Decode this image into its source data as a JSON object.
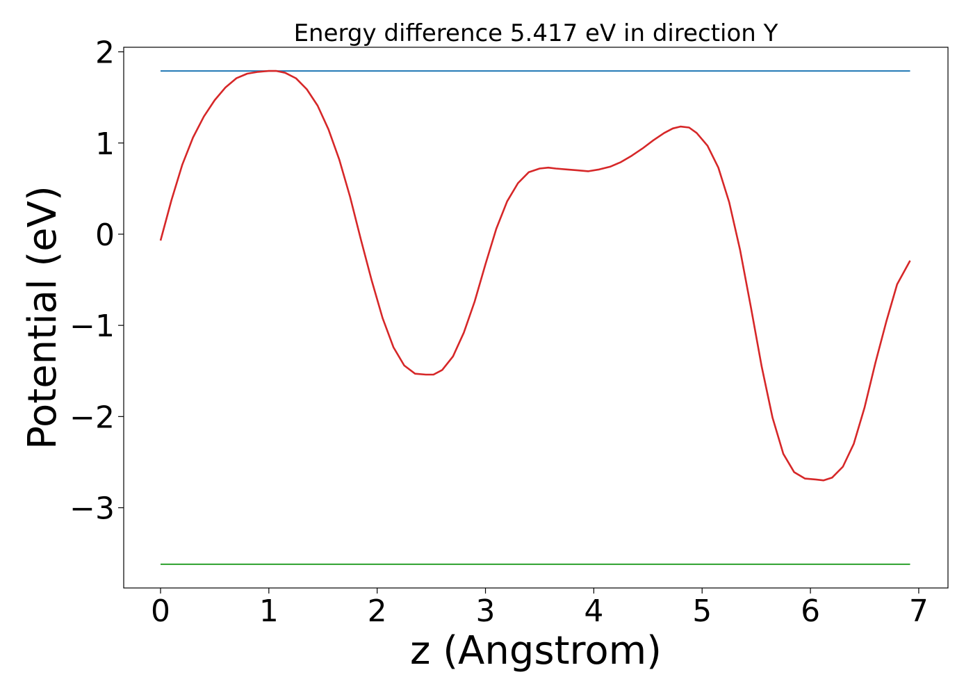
{
  "chart_data": {
    "type": "line",
    "title": "Energy difference 5.417 eV in direction Y",
    "xlabel": "z (Angstrom)",
    "ylabel": "Potential (eV)",
    "xlim": [
      -0.34,
      7.27
    ],
    "ylim": [
      -3.88,
      2.05
    ],
    "xticks": [
      0,
      1,
      2,
      3,
      4,
      5,
      6,
      7
    ],
    "xtick_labels": [
      "0",
      "1",
      "2",
      "3",
      "4",
      "5",
      "6",
      "7"
    ],
    "yticks": [
      -3,
      -2,
      -1,
      0,
      1,
      2
    ],
    "ytick_labels": [
      "−3",
      "−2",
      "−1",
      "0",
      "1",
      "2"
    ],
    "grid": false,
    "series": [
      {
        "color": "#d62728",
        "x": [
          0.0,
          0.1,
          0.2,
          0.3,
          0.4,
          0.5,
          0.6,
          0.7,
          0.8,
          0.9,
          1.0,
          1.07,
          1.15,
          1.25,
          1.35,
          1.45,
          1.55,
          1.65,
          1.75,
          1.85,
          1.95,
          2.05,
          2.15,
          2.25,
          2.35,
          2.45,
          2.52,
          2.6,
          2.7,
          2.8,
          2.9,
          3.0,
          3.1,
          3.2,
          3.3,
          3.4,
          3.5,
          3.58,
          3.65,
          3.75,
          3.85,
          3.95,
          4.05,
          4.15,
          4.25,
          4.35,
          4.45,
          4.55,
          4.65,
          4.73,
          4.8,
          4.88,
          4.95,
          5.05,
          5.15,
          5.25,
          5.35,
          5.45,
          5.55,
          5.65,
          5.75,
          5.85,
          5.95,
          6.05,
          6.12,
          6.2,
          6.3,
          6.4,
          6.5,
          6.6,
          6.7,
          6.8,
          6.92
        ],
        "y": [
          -0.07,
          0.37,
          0.76,
          1.06,
          1.29,
          1.47,
          1.61,
          1.71,
          1.76,
          1.78,
          1.79,
          1.79,
          1.77,
          1.71,
          1.59,
          1.41,
          1.15,
          0.82,
          0.41,
          -0.06,
          -0.51,
          -0.92,
          -1.24,
          -1.44,
          -1.53,
          -1.54,
          -1.54,
          -1.49,
          -1.34,
          -1.08,
          -0.74,
          -0.33,
          0.06,
          0.36,
          0.56,
          0.68,
          0.72,
          0.73,
          0.72,
          0.71,
          0.7,
          0.69,
          0.71,
          0.74,
          0.79,
          0.86,
          0.94,
          1.03,
          1.11,
          1.16,
          1.18,
          1.17,
          1.11,
          0.97,
          0.73,
          0.35,
          -0.17,
          -0.8,
          -1.45,
          -2.01,
          -2.41,
          -2.61,
          -2.68,
          -2.69,
          -2.7,
          -2.67,
          -2.55,
          -2.3,
          -1.9,
          -1.41,
          -0.96,
          -0.55,
          -0.29
        ]
      },
      {
        "color": "#1f77b4",
        "x": [
          0.0,
          6.92
        ],
        "y": [
          1.79,
          1.79
        ]
      },
      {
        "color": "#2ca02c",
        "x": [
          0.0,
          6.92
        ],
        "y": [
          -3.62,
          -3.62
        ]
      }
    ]
  }
}
